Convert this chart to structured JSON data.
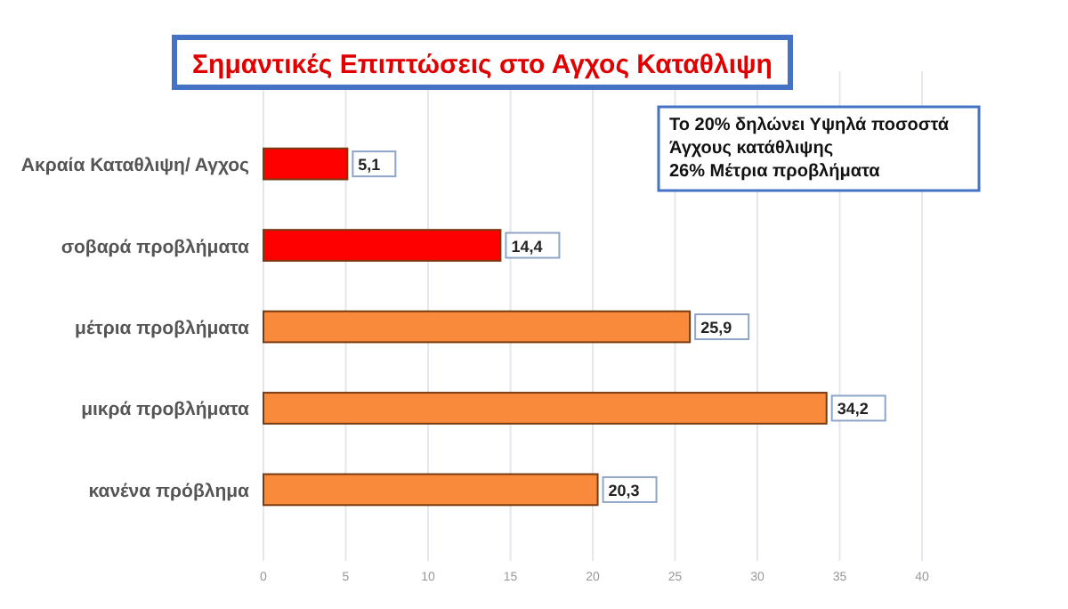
{
  "chart_data": {
    "type": "bar",
    "orientation": "horizontal",
    "title": "Σημαντικές Επιπτώσεις στο Αγχος Καταθλιψη",
    "categories": [
      "Ακραία Καταθλιψη/ Αγχος",
      "σοβαρά προβλήματα",
      "μέτρια προβλήματα",
      "μικρά προβλήματα",
      "κανένα πρόβλημα"
    ],
    "values": [
      5.1,
      14.4,
      25.9,
      34.2,
      20.3
    ],
    "colors": [
      "#ff0000",
      "#ff0000",
      "#f98a3c",
      "#f98a3c",
      "#f98a3c"
    ],
    "value_labels": [
      "5,1",
      "14,4",
      "25,9",
      "34,2",
      "20,3"
    ],
    "xlim": [
      0,
      40
    ],
    "xticks": [
      0,
      5,
      10,
      15,
      20,
      25,
      30,
      35,
      40
    ],
    "grid": "x",
    "annotations": [
      "Το 20% δηλώνει Υψηλά ποσοστά\nΆγχους κατάθλιψης\n26% Μέτρια προβλήματα"
    ]
  }
}
